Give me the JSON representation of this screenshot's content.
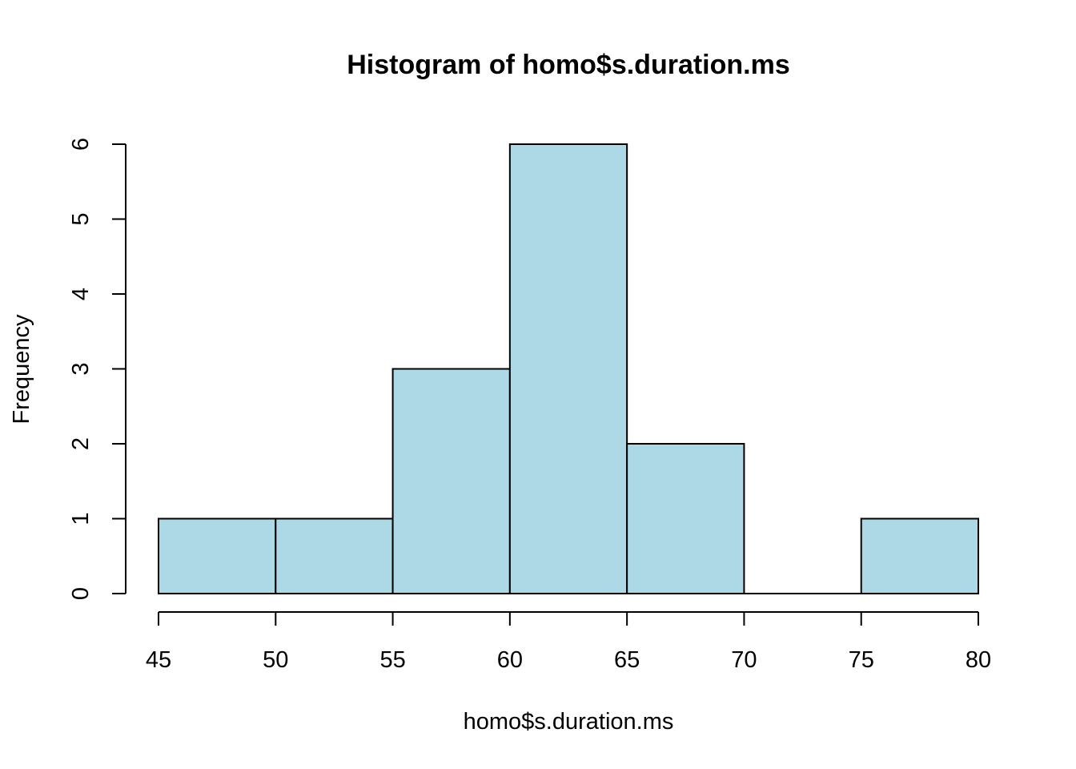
{
  "chart_data": {
    "type": "bar",
    "title": "Histogram of homo$s.duration.ms",
    "xlabel": "homo$s.duration.ms",
    "ylabel": "Frequency",
    "bins": [
      {
        "start": 45,
        "end": 50,
        "count": 1
      },
      {
        "start": 50,
        "end": 55,
        "count": 1
      },
      {
        "start": 55,
        "end": 60,
        "count": 3
      },
      {
        "start": 60,
        "end": 65,
        "count": 6
      },
      {
        "start": 65,
        "end": 70,
        "count": 2
      },
      {
        "start": 70,
        "end": 75,
        "count": 0
      },
      {
        "start": 75,
        "end": 80,
        "count": 1
      }
    ],
    "xlim": [
      45,
      80
    ],
    "ylim": [
      0,
      6
    ],
    "x_ticks": [
      "45",
      "50",
      "55",
      "60",
      "65",
      "70",
      "75",
      "80"
    ],
    "y_ticks": [
      "0",
      "1",
      "2",
      "3",
      "4",
      "5",
      "6"
    ],
    "bar_color": "#add8e6",
    "grid": false
  }
}
